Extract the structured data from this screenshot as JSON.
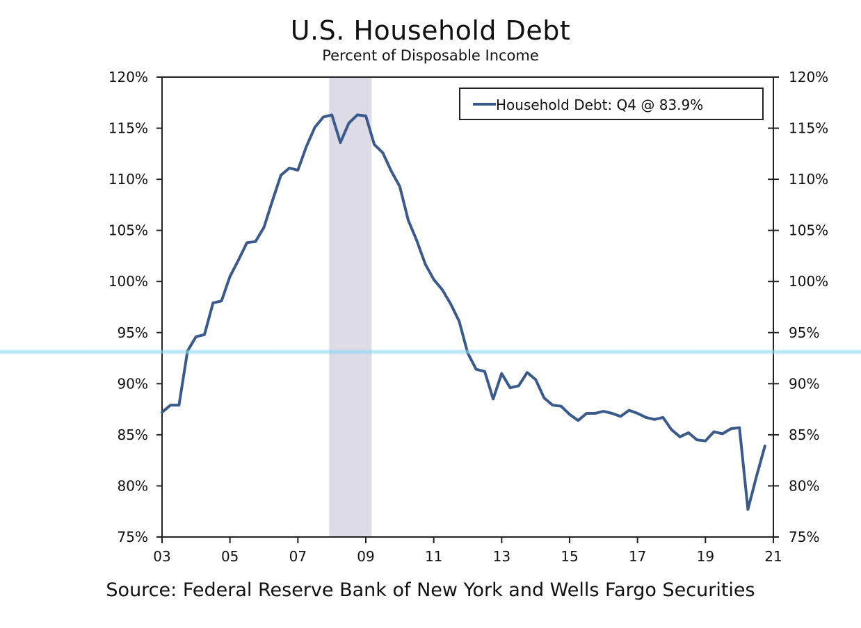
{
  "chart_data": {
    "type": "line",
    "title": "U.S. Household Debt",
    "subtitle": "Percent of Disposable Income",
    "source": "Source: Federal Reserve Bank of New York and Wells Fargo Securities",
    "ylim": [
      75,
      120
    ],
    "y_ticks": [
      "75%",
      "80%",
      "85%",
      "90%",
      "95%",
      "100%",
      "105%",
      "110%",
      "115%",
      "120%"
    ],
    "y_tick_values": [
      75,
      80,
      85,
      90,
      95,
      100,
      105,
      110,
      115,
      120
    ],
    "x_ticks": [
      "03",
      "05",
      "07",
      "09",
      "11",
      "13",
      "15",
      "17",
      "19",
      "21"
    ],
    "x_tick_values": [
      2003,
      2005,
      2007,
      2009,
      2011,
      2013,
      2015,
      2017,
      2019,
      2021
    ],
    "xlim": [
      2003,
      2021
    ],
    "grid": false,
    "legend": {
      "placement": "top-right",
      "entries": [
        "Household Debt: Q4 @ 83.9%"
      ]
    },
    "recession": {
      "start": 2007.92,
      "end": 2009.17,
      "color": "#dcdbe6"
    },
    "series": [
      {
        "name": "Household Debt: Q4 @ 83.9%",
        "color": "#3a5a8c",
        "x": [
          2003.0,
          2003.25,
          2003.5,
          2003.75,
          2004.0,
          2004.25,
          2004.5,
          2004.75,
          2005.0,
          2005.25,
          2005.5,
          2005.75,
          2006.0,
          2006.25,
          2006.5,
          2006.75,
          2007.0,
          2007.25,
          2007.5,
          2007.75,
          2008.0,
          2008.25,
          2008.5,
          2008.75,
          2009.0,
          2009.25,
          2009.5,
          2009.75,
          2010.0,
          2010.25,
          2010.5,
          2010.75,
          2011.0,
          2011.25,
          2011.5,
          2011.75,
          2012.0,
          2012.25,
          2012.5,
          2012.75,
          2013.0,
          2013.25,
          2013.5,
          2013.75,
          2014.0,
          2014.25,
          2014.5,
          2014.75,
          2015.0,
          2015.25,
          2015.5,
          2015.75,
          2016.0,
          2016.25,
          2016.5,
          2016.75,
          2017.0,
          2017.25,
          2017.5,
          2017.75,
          2018.0,
          2018.25,
          2018.5,
          2018.75,
          2019.0,
          2019.25,
          2019.5,
          2019.75,
          2020.0,
          2020.25,
          2020.5,
          2020.75
        ],
        "values": [
          87.2,
          87.9,
          87.9,
          93.2,
          94.6,
          94.8,
          97.9,
          98.1,
          100.5,
          102.1,
          103.8,
          103.9,
          105.3,
          107.9,
          110.4,
          111.1,
          110.9,
          113.2,
          115.1,
          116.1,
          116.3,
          113.6,
          115.5,
          116.3,
          116.2,
          113.4,
          112.6,
          110.8,
          109.3,
          106.0,
          104.0,
          101.7,
          100.2,
          99.2,
          97.8,
          96.1,
          93.0,
          91.4,
          91.2,
          88.5,
          91.0,
          89.6,
          89.8,
          91.1,
          90.4,
          88.6,
          87.9,
          87.8,
          87.0,
          86.4,
          87.1,
          87.1,
          87.3,
          87.1,
          86.8,
          87.4,
          87.1,
          86.7,
          86.5,
          86.7,
          85.5,
          84.8,
          85.2,
          84.5,
          84.4,
          85.3,
          85.1,
          85.6,
          85.7,
          77.7,
          80.9,
          83.9
        ]
      }
    ]
  }
}
